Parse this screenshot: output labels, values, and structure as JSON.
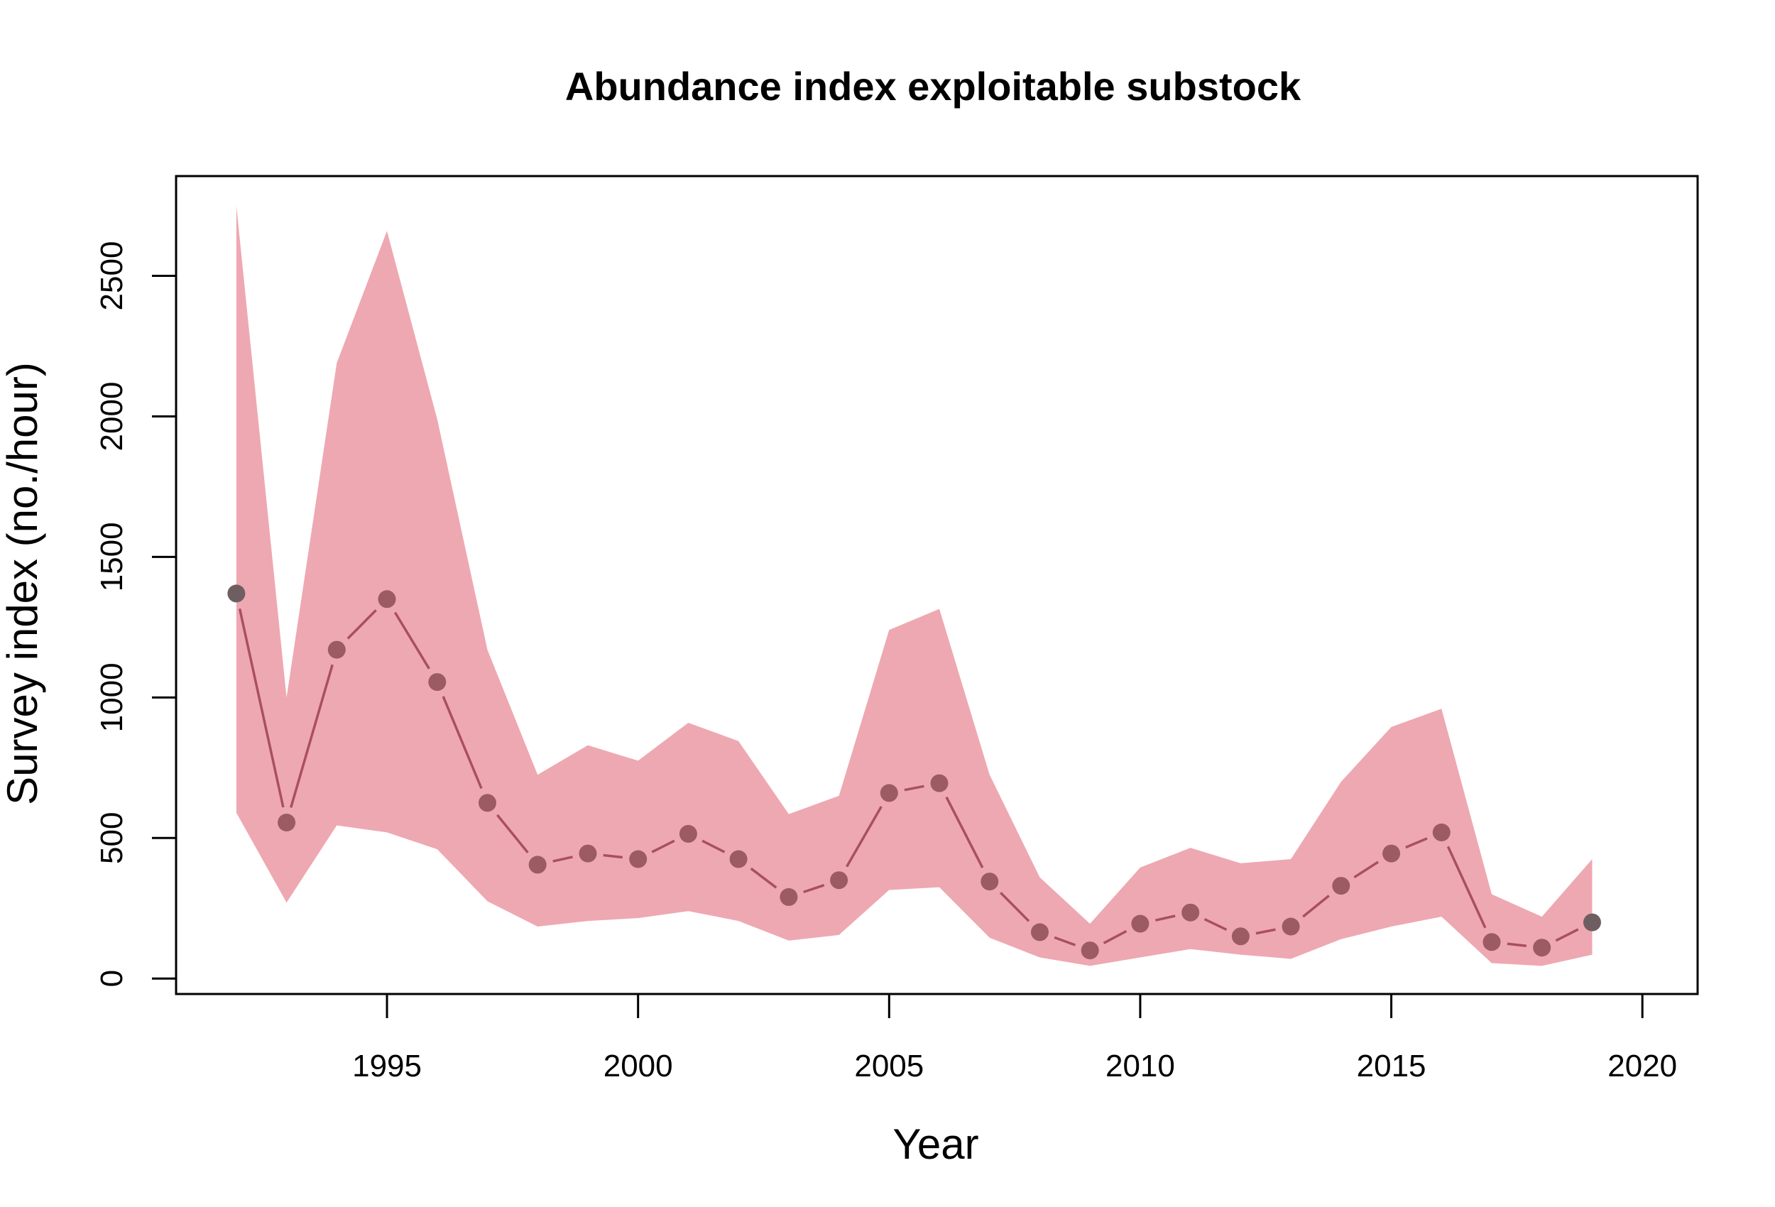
{
  "chart_data": {
    "type": "line",
    "title": "Abundance index exploitable substock",
    "xlabel": "Year",
    "ylabel": "Survey index (no./hour)",
    "xlim": [
      1990.8,
      2021.1
    ],
    "ylim": [
      -55,
      2855
    ],
    "x_ticks": [
      1995,
      2000,
      2005,
      2010,
      2015,
      2020
    ],
    "y_ticks": [
      0,
      500,
      1000,
      1500,
      2000,
      2500
    ],
    "grid": false,
    "colors": {
      "ribbon": "#eea8b1",
      "line": "#a9505d",
      "point": "#9c5a63",
      "endpoint": "#6e5e61"
    },
    "series": [
      {
        "x": [
          1992,
          1993,
          1994,
          1995,
          1996,
          1997,
          1998,
          1999,
          2000,
          2001,
          2002,
          2003,
          2004,
          2005,
          2006,
          2007,
          2008,
          2009,
          2010,
          2011,
          2012,
          2013,
          2014,
          2015,
          2016,
          2017,
          2018,
          2019
        ],
        "y": [
          1370,
          555,
          1170,
          1350,
          1055,
          625,
          405,
          445,
          425,
          515,
          425,
          290,
          350,
          660,
          695,
          345,
          165,
          100,
          195,
          235,
          150,
          185,
          330,
          445,
          520,
          130,
          110,
          200
        ],
        "lower": [
          590,
          270,
          545,
          520,
          460,
          275,
          185,
          205,
          215,
          240,
          205,
          135,
          155,
          315,
          325,
          145,
          75,
          45,
          75,
          105,
          85,
          70,
          140,
          185,
          220,
          55,
          45,
          85
        ],
        "upper": [
          2750,
          1000,
          2190,
          2660,
          1990,
          1170,
          725,
          830,
          775,
          910,
          845,
          585,
          650,
          1240,
          1315,
          725,
          360,
          195,
          395,
          465,
          410,
          425,
          700,
          895,
          960,
          300,
          220,
          425
        ]
      }
    ]
  }
}
